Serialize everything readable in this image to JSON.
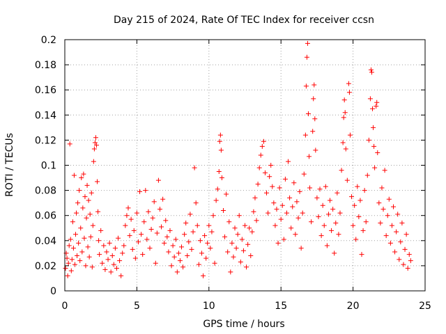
{
  "chart_data": {
    "type": "scatter",
    "title": "Day 215 of 2024, Rate Of TEC Index for receiver ccsn",
    "xlabel": "GPS time / hours",
    "ylabel": "ROTI / TECUs",
    "xlim": [
      0,
      25
    ],
    "ylim": [
      0,
      0.2
    ],
    "xticks": [
      0,
      5,
      10,
      15,
      20,
      25
    ],
    "yticks": [
      0,
      0.02,
      0.04,
      0.06,
      0.08,
      0.1,
      0.12,
      0.14,
      0.16,
      0.18,
      0.2
    ],
    "xtick_labels": [
      "0",
      "5",
      "10",
      "15",
      "20",
      "25"
    ],
    "ytick_labels": [
      "0",
      "0.02",
      "0.04",
      "0.06",
      "0.08",
      "0.1",
      "0.12",
      "0.14",
      "0.16",
      "0.18",
      "0.2"
    ],
    "grid": true,
    "marker": "plus",
    "color": "#ff0000",
    "series": [
      {
        "points": [
          [
            0.05,
            0.018
          ],
          [
            0.1,
            0.03
          ],
          [
            0.15,
            0.026
          ],
          [
            0.2,
            0.012
          ],
          [
            0.25,
            0.022
          ],
          [
            0.3,
            0.036
          ],
          [
            0.35,
            0.117
          ],
          [
            0.4,
            0.041
          ],
          [
            0.45,
            0.016
          ],
          [
            0.5,
            0.025
          ],
          [
            0.55,
            0.055
          ],
          [
            0.6,
            0.034
          ],
          [
            0.65,
            0.092
          ],
          [
            0.7,
            0.021
          ],
          [
            0.75,
            0.045
          ],
          [
            0.8,
            0.062
          ],
          [
            0.85,
            0.028
          ],
          [
            0.9,
            0.07
          ],
          [
            0.95,
            0.038
          ],
          [
            1.0,
            0.08
          ],
          [
            1.05,
            0.024
          ],
          [
            1.1,
            0.05
          ],
          [
            1.15,
            0.09
          ],
          [
            1.2,
            0.031
          ],
          [
            1.25,
            0.066
          ],
          [
            1.3,
            0.093
          ],
          [
            1.35,
            0.042
          ],
          [
            1.4,
            0.075
          ],
          [
            1.45,
            0.02
          ],
          [
            1.5,
            0.058
          ],
          [
            1.55,
            0.084
          ],
          [
            1.6,
            0.035
          ],
          [
            1.65,
            0.072
          ],
          [
            1.7,
            0.027
          ],
          [
            1.75,
            0.061
          ],
          [
            1.8,
            0.043
          ],
          [
            1.85,
            0.078
          ],
          [
            1.9,
            0.019
          ],
          [
            1.95,
            0.052
          ],
          [
            2.0,
            0.103
          ],
          [
            2.05,
            0.113
          ],
          [
            2.1,
            0.118
          ],
          [
            2.15,
            0.122
          ],
          [
            2.2,
            0.116
          ],
          [
            2.25,
            0.087
          ],
          [
            2.3,
            0.063
          ],
          [
            2.35,
            0.04
          ],
          [
            2.4,
            0.029
          ],
          [
            2.5,
            0.048
          ],
          [
            2.6,
            0.022
          ],
          [
            2.7,
            0.036
          ],
          [
            2.8,
            0.017
          ],
          [
            2.9,
            0.031
          ],
          [
            3.0,
            0.025
          ],
          [
            3.1,
            0.038
          ],
          [
            3.2,
            0.015
          ],
          [
            3.3,
            0.028
          ],
          [
            3.4,
            0.021
          ],
          [
            3.5,
            0.034
          ],
          [
            3.6,
            0.018
          ],
          [
            3.7,
            0.042
          ],
          [
            3.8,
            0.024
          ],
          [
            3.9,
            0.012
          ],
          [
            4.0,
            0.03
          ],
          [
            4.1,
            0.036
          ],
          [
            4.2,
            0.052
          ],
          [
            4.3,
            0.06
          ],
          [
            4.4,
            0.066
          ],
          [
            4.5,
            0.044
          ],
          [
            4.6,
            0.057
          ],
          [
            4.7,
            0.033
          ],
          [
            4.8,
            0.048
          ],
          [
            4.9,
            0.026
          ],
          [
            5.0,
            0.062
          ],
          [
            5.1,
            0.039
          ],
          [
            5.2,
            0.079
          ],
          [
            5.3,
            0.045
          ],
          [
            5.4,
            0.029
          ],
          [
            5.5,
            0.055
          ],
          [
            5.6,
            0.08
          ],
          [
            5.7,
            0.041
          ],
          [
            5.8,
            0.063
          ],
          [
            5.9,
            0.034
          ],
          [
            6.0,
            0.049
          ],
          [
            6.1,
            0.058
          ],
          [
            6.2,
            0.071
          ],
          [
            6.3,
            0.022
          ],
          [
            6.4,
            0.046
          ],
          [
            6.5,
            0.088
          ],
          [
            6.6,
            0.065
          ],
          [
            6.7,
            0.051
          ],
          [
            6.8,
            0.073
          ],
          [
            6.9,
            0.038
          ],
          [
            7.0,
            0.056
          ],
          [
            7.1,
            0.043
          ],
          [
            7.2,
            0.031
          ],
          [
            7.3,
            0.048
          ],
          [
            7.4,
            0.02
          ],
          [
            7.5,
            0.036
          ],
          [
            7.6,
            0.027
          ],
          [
            7.7,
            0.041
          ],
          [
            7.8,
            0.015
          ],
          [
            7.9,
            0.03
          ],
          [
            8.0,
            0.024
          ],
          [
            8.1,
            0.035
          ],
          [
            8.2,
            0.019
          ],
          [
            8.3,
            0.045
          ],
          [
            8.4,
            0.054
          ],
          [
            8.5,
            0.028
          ],
          [
            8.6,
            0.039
          ],
          [
            8.7,
            0.061
          ],
          [
            8.8,
            0.033
          ],
          [
            8.9,
            0.047
          ],
          [
            9.0,
            0.098
          ],
          [
            9.1,
            0.07
          ],
          [
            9.2,
            0.052
          ],
          [
            9.3,
            0.021
          ],
          [
            9.4,
            0.04
          ],
          [
            9.5,
            0.03
          ],
          [
            9.6,
            0.012
          ],
          [
            9.7,
            0.044
          ],
          [
            9.8,
            0.026
          ],
          [
            9.9,
            0.038
          ],
          [
            10.0,
            0.052
          ],
          [
            10.1,
            0.034
          ],
          [
            10.2,
            0.047
          ],
          [
            10.3,
            0.06
          ],
          [
            10.4,
            0.022
          ],
          [
            10.5,
            0.072
          ],
          [
            10.6,
            0.081
          ],
          [
            10.7,
            0.095
          ],
          [
            10.75,
            0.119
          ],
          [
            10.8,
            0.124
          ],
          [
            10.85,
            0.112
          ],
          [
            10.9,
            0.09
          ],
          [
            11.0,
            0.064
          ],
          [
            11.1,
            0.043
          ],
          [
            11.2,
            0.077
          ],
          [
            11.3,
            0.031
          ],
          [
            11.4,
            0.055
          ],
          [
            11.5,
            0.015
          ],
          [
            11.6,
            0.038
          ],
          [
            11.7,
            0.027
          ],
          [
            11.8,
            0.05
          ],
          [
            11.9,
            0.034
          ],
          [
            12.0,
            0.045
          ],
          [
            12.1,
            0.06
          ],
          [
            12.2,
            0.023
          ],
          [
            12.3,
            0.041
          ],
          [
            12.4,
            0.032
          ],
          [
            12.5,
            0.052
          ],
          [
            12.6,
            0.019
          ],
          [
            12.7,
            0.037
          ],
          [
            12.8,
            0.05
          ],
          [
            12.9,
            0.028
          ],
          [
            13.0,
            0.047
          ],
          [
            13.1,
            0.063
          ],
          [
            13.2,
            0.074
          ],
          [
            13.3,
            0.056
          ],
          [
            13.4,
            0.085
          ],
          [
            13.5,
            0.098
          ],
          [
            13.6,
            0.108
          ],
          [
            13.7,
            0.115
          ],
          [
            13.8,
            0.119
          ],
          [
            13.9,
            0.094
          ],
          [
            14.0,
            0.078
          ],
          [
            14.1,
            0.062
          ],
          [
            14.2,
            0.091
          ],
          [
            14.3,
            0.1
          ],
          [
            14.4,
            0.083
          ],
          [
            14.5,
            0.07
          ],
          [
            14.6,
            0.052
          ],
          [
            14.7,
            0.065
          ],
          [
            14.8,
            0.038
          ],
          [
            14.9,
            0.082
          ],
          [
            15.0,
            0.057
          ],
          [
            15.1,
            0.068
          ],
          [
            15.2,
            0.041
          ],
          [
            15.3,
            0.089
          ],
          [
            15.4,
            0.062
          ],
          [
            15.5,
            0.103
          ],
          [
            15.6,
            0.074
          ],
          [
            15.7,
            0.05
          ],
          [
            15.8,
            0.067
          ],
          [
            15.9,
            0.086
          ],
          [
            16.0,
            0.045
          ],
          [
            16.1,
            0.071
          ],
          [
            16.2,
            0.058
          ],
          [
            16.3,
            0.079
          ],
          [
            16.4,
            0.034
          ],
          [
            16.5,
            0.062
          ],
          [
            16.6,
            0.093
          ],
          [
            16.7,
            0.124
          ],
          [
            16.75,
            0.163
          ],
          [
            16.8,
            0.186
          ],
          [
            16.85,
            0.197
          ],
          [
            16.9,
            0.141
          ],
          [
            16.95,
            0.107
          ],
          [
            17.0,
            0.082
          ],
          [
            17.1,
            0.055
          ],
          [
            17.2,
            0.127
          ],
          [
            17.25,
            0.153
          ],
          [
            17.3,
            0.164
          ],
          [
            17.35,
            0.137
          ],
          [
            17.4,
            0.112
          ],
          [
            17.5,
            0.074
          ],
          [
            17.6,
            0.059
          ],
          [
            17.7,
            0.081
          ],
          [
            17.8,
            0.044
          ],
          [
            17.9,
            0.068
          ],
          [
            18.0,
            0.052
          ],
          [
            18.1,
            0.083
          ],
          [
            18.2,
            0.036
          ],
          [
            18.3,
            0.061
          ],
          [
            18.4,
            0.072
          ],
          [
            18.5,
            0.048
          ],
          [
            18.6,
            0.065
          ],
          [
            18.7,
            0.03
          ],
          [
            18.8,
            0.054
          ],
          [
            18.9,
            0.078
          ],
          [
            19.0,
            0.045
          ],
          [
            19.1,
            0.062
          ],
          [
            19.2,
            0.096
          ],
          [
            19.3,
            0.118
          ],
          [
            19.35,
            0.138
          ],
          [
            19.4,
            0.152
          ],
          [
            19.45,
            0.142
          ],
          [
            19.5,
            0.113
          ],
          [
            19.6,
            0.088
          ],
          [
            19.7,
            0.165
          ],
          [
            19.75,
            0.158
          ],
          [
            19.8,
            0.124
          ],
          [
            19.9,
            0.075
          ],
          [
            20.0,
            0.052
          ],
          [
            20.1,
            0.068
          ],
          [
            20.2,
            0.041
          ],
          [
            20.3,
            0.083
          ],
          [
            20.4,
            0.059
          ],
          [
            20.5,
            0.072
          ],
          [
            20.6,
            0.029
          ],
          [
            20.7,
            0.048
          ],
          [
            20.8,
            0.08
          ],
          [
            20.9,
            0.055
          ],
          [
            21.0,
            0.092
          ],
          [
            21.1,
            0.12
          ],
          [
            21.2,
            0.153
          ],
          [
            21.25,
            0.176
          ],
          [
            21.3,
            0.174
          ],
          [
            21.35,
            0.145
          ],
          [
            21.4,
            0.13
          ],
          [
            21.45,
            0.115
          ],
          [
            21.5,
            0.098
          ],
          [
            21.6,
            0.147
          ],
          [
            21.65,
            0.15
          ],
          [
            21.7,
            0.11
          ],
          [
            21.8,
            0.07
          ],
          [
            21.9,
            0.054
          ],
          [
            22.0,
            0.082
          ],
          [
            22.1,
            0.065
          ],
          [
            22.2,
            0.096
          ],
          [
            22.3,
            0.044
          ],
          [
            22.4,
            0.06
          ],
          [
            22.5,
            0.073
          ],
          [
            22.6,
            0.038
          ],
          [
            22.7,
            0.052
          ],
          [
            22.8,
            0.067
          ],
          [
            22.9,
            0.031
          ],
          [
            23.0,
            0.047
          ],
          [
            23.1,
            0.061
          ],
          [
            23.2,
            0.025
          ],
          [
            23.3,
            0.039
          ],
          [
            23.4,
            0.054
          ],
          [
            23.5,
            0.021
          ],
          [
            23.6,
            0.033
          ],
          [
            23.7,
            0.045
          ],
          [
            23.8,
            0.018
          ],
          [
            23.9,
            0.029
          ],
          [
            24.0,
            0.024
          ]
        ]
      }
    ]
  }
}
